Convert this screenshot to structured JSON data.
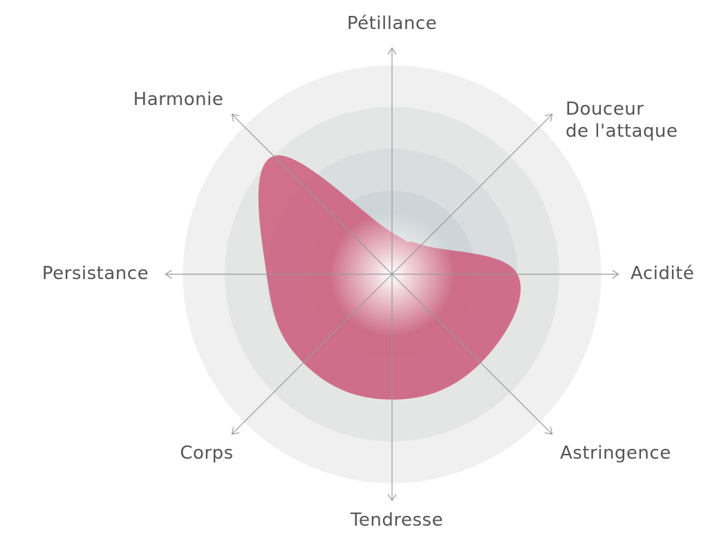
{
  "chart_data": {
    "type": "radar",
    "axes": [
      "Pétillance",
      "Douceur\nde l'attaque",
      "Acidité",
      "Astringence",
      "Tendresse",
      "Corps",
      "Persistance",
      "Harmonie"
    ],
    "values": [
      1,
      1,
      3,
      3,
      3,
      3,
      3,
      4
    ],
    "rlim": [
      0,
      5
    ],
    "levels": 5,
    "curve": "smooth",
    "colors": {
      "fill": "#cc5a7a",
      "rings": [
        "#f0f0f0",
        "#e4e6e6",
        "#d9dde0",
        "#cdd5d8"
      ],
      "axis": "#999999",
      "label": "#555555"
    }
  }
}
